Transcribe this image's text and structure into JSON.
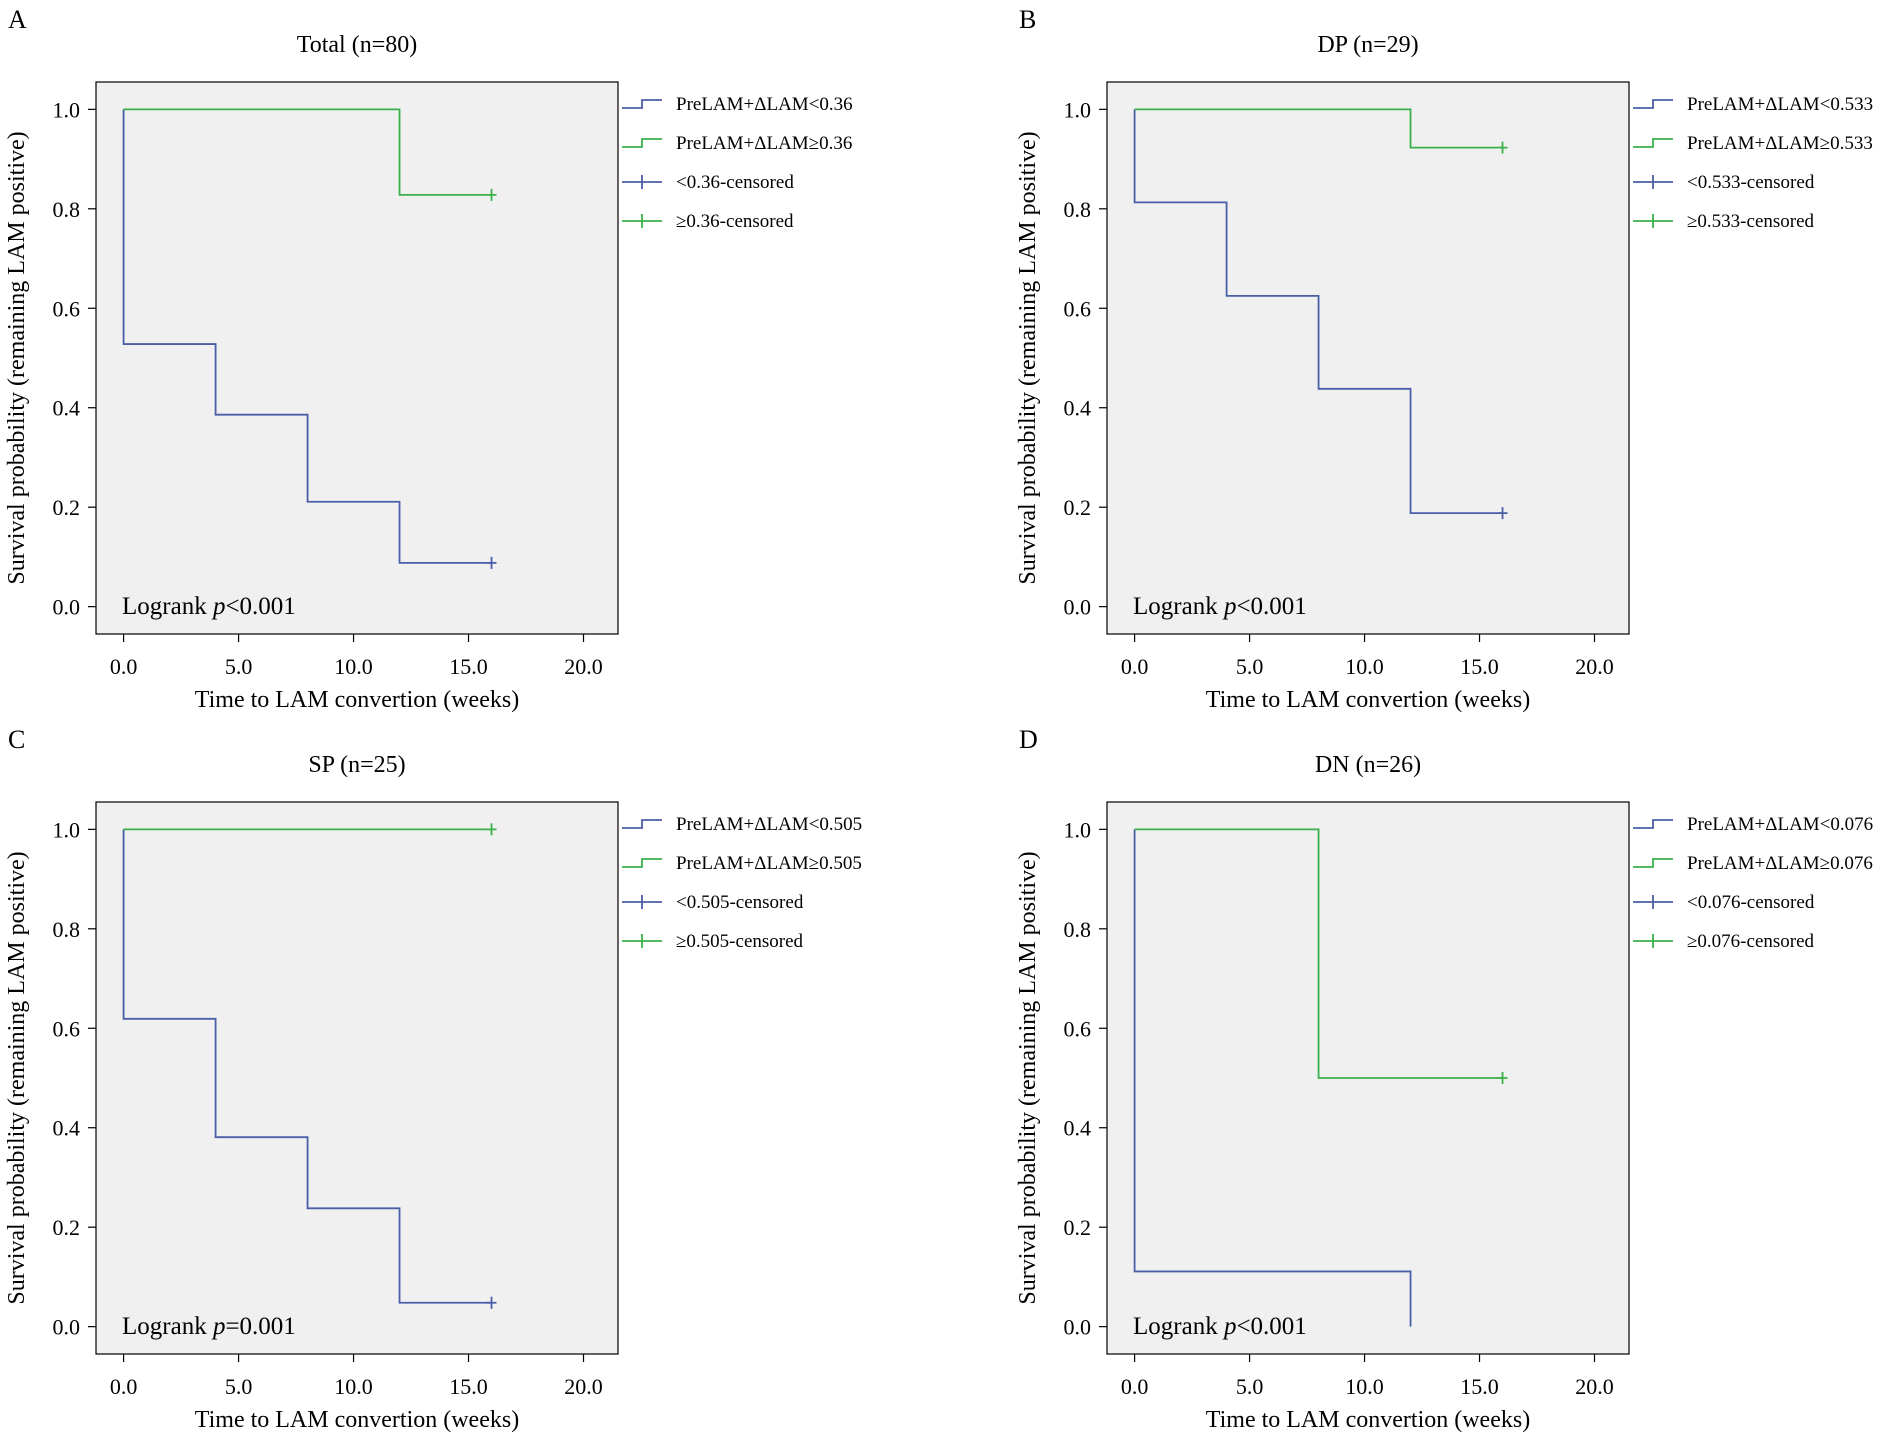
{
  "figure": {
    "description_free": true,
    "colors": {
      "group_low": "#4a5ea8",
      "group_high": "#3bb04a",
      "plot_background": "#f0f0f0",
      "axis": "#000000"
    }
  },
  "chart_data": [
    {
      "type": "line",
      "subtype": "kaplan-meier-step",
      "panel_letter": "A",
      "title": "Total (n=80)",
      "xlabel": "Time to LAM convertion (weeks)",
      "ylabel": "Survival probability (remaining LAM positive)",
      "xlim": [
        -1.2,
        21.5
      ],
      "ylim": [
        -0.055,
        1.055
      ],
      "x_ticks": [
        0,
        5,
        10,
        15,
        20
      ],
      "x_tick_labels": [
        "0.0",
        "5.0",
        "10.0",
        "15.0",
        "20.0"
      ],
      "y_ticks": [
        0,
        0.2,
        0.4,
        0.6,
        0.8,
        1.0
      ],
      "y_tick_labels": [
        "0.0",
        "0.2",
        "0.4",
        "0.6",
        "0.8",
        "1.0"
      ],
      "annotation": {
        "prefix": "Logrank ",
        "italic": "p",
        "suffix": "<0.001"
      },
      "legend": [
        "PreLAM+ΔLAM<0.36",
        "PreLAM+ΔLAM≥0.36",
        "<0.36-censored",
        "≥0.36-censored"
      ],
      "series": [
        {
          "name": "PreLAM+ΔLAM<0.36",
          "group": "low",
          "x": [
            0,
            0,
            4,
            4,
            8,
            8,
            12,
            12,
            16
          ],
          "y": [
            1.0,
            0.528,
            0.528,
            0.386,
            0.386,
            0.211,
            0.211,
            0.088,
            0.088
          ],
          "censored": [
            [
              16,
              0.088
            ]
          ]
        },
        {
          "name": "PreLAM+ΔLAM≥0.36",
          "group": "high",
          "x": [
            0,
            12,
            12,
            16
          ],
          "y": [
            1.0,
            1.0,
            0.828,
            0.828
          ],
          "censored": [
            [
              16,
              0.828
            ]
          ]
        }
      ]
    },
    {
      "type": "line",
      "subtype": "kaplan-meier-step",
      "panel_letter": "B",
      "title": "DP (n=29)",
      "xlabel": "Time to LAM convertion (weeks)",
      "ylabel": "Survival probability (remaining LAM positive)",
      "xlim": [
        -1.2,
        21.5
      ],
      "ylim": [
        -0.055,
        1.055
      ],
      "x_ticks": [
        0,
        5,
        10,
        15,
        20
      ],
      "x_tick_labels": [
        "0.0",
        "5.0",
        "10.0",
        "15.0",
        "20.0"
      ],
      "y_ticks": [
        0,
        0.2,
        0.4,
        0.6,
        0.8,
        1.0
      ],
      "y_tick_labels": [
        "0.0",
        "0.2",
        "0.4",
        "0.6",
        "0.8",
        "1.0"
      ],
      "annotation": {
        "prefix": "Logrank ",
        "italic": "p",
        "suffix": "<0.001"
      },
      "legend": [
        "PreLAM+ΔLAM<0.533",
        "PreLAM+ΔLAM≥0.533",
        "<0.533-censored",
        "≥0.533-censored"
      ],
      "series": [
        {
          "name": "PreLAM+ΔLAM<0.533",
          "group": "low",
          "x": [
            0,
            0,
            4,
            4,
            8,
            8,
            12,
            12,
            16
          ],
          "y": [
            1.0,
            0.813,
            0.813,
            0.625,
            0.625,
            0.438,
            0.438,
            0.188,
            0.188
          ],
          "censored": [
            [
              16,
              0.188
            ]
          ]
        },
        {
          "name": "PreLAM+ΔLAM≥0.533",
          "group": "high",
          "x": [
            0,
            12,
            12,
            16
          ],
          "y": [
            1.0,
            1.0,
            0.923,
            0.923
          ],
          "censored": [
            [
              16,
              0.923
            ]
          ]
        }
      ]
    },
    {
      "type": "line",
      "subtype": "kaplan-meier-step",
      "panel_letter": "C",
      "title": "SP (n=25)",
      "xlabel": "Time to LAM convertion (weeks)",
      "ylabel": "Survival probability (remaining LAM positive)",
      "xlim": [
        -1.2,
        21.5
      ],
      "ylim": [
        -0.055,
        1.055
      ],
      "x_ticks": [
        0,
        5,
        10,
        15,
        20
      ],
      "x_tick_labels": [
        "0.0",
        "5.0",
        "10.0",
        "15.0",
        "20.0"
      ],
      "y_ticks": [
        0,
        0.2,
        0.4,
        0.6,
        0.8,
        1.0
      ],
      "y_tick_labels": [
        "0.0",
        "0.2",
        "0.4",
        "0.6",
        "0.8",
        "1.0"
      ],
      "annotation": {
        "prefix": "Logrank ",
        "italic": "p",
        "suffix": "=0.001"
      },
      "legend": [
        "PreLAM+ΔLAM<0.505",
        "PreLAM+ΔLAM≥0.505",
        "<0.505-censored",
        "≥0.505-censored"
      ],
      "series": [
        {
          "name": "PreLAM+ΔLAM<0.505",
          "group": "low",
          "x": [
            0,
            0,
            4,
            4,
            8,
            8,
            12,
            12,
            16
          ],
          "y": [
            1.0,
            0.619,
            0.619,
            0.381,
            0.381,
            0.238,
            0.238,
            0.048,
            0.048
          ],
          "censored": [
            [
              16,
              0.048
            ]
          ]
        },
        {
          "name": "PreLAM+ΔLAM≥0.505",
          "group": "high",
          "x": [
            0,
            16
          ],
          "y": [
            1.0,
            1.0
          ],
          "censored": [
            [
              16,
              1.0
            ]
          ]
        }
      ]
    },
    {
      "type": "line",
      "subtype": "kaplan-meier-step",
      "panel_letter": "D",
      "title": "DN (n=26)",
      "xlabel": "Time to LAM convertion (weeks)",
      "ylabel": "Survival probability (remaining LAM positive)",
      "xlim": [
        -1.2,
        21.5
      ],
      "ylim": [
        -0.055,
        1.055
      ],
      "x_ticks": [
        0,
        5,
        10,
        15,
        20
      ],
      "x_tick_labels": [
        "0.0",
        "5.0",
        "10.0",
        "15.0",
        "20.0"
      ],
      "y_ticks": [
        0,
        0.2,
        0.4,
        0.6,
        0.8,
        1.0
      ],
      "y_tick_labels": [
        "0.0",
        "0.2",
        "0.4",
        "0.6",
        "0.8",
        "1.0"
      ],
      "annotation": {
        "prefix": "Logrank ",
        "italic": "p",
        "suffix": "<0.001"
      },
      "legend": [
        "PreLAM+ΔLAM<0.076",
        "PreLAM+ΔLAM≥0.076",
        "<0.076-censored",
        "≥0.076-censored"
      ],
      "series": [
        {
          "name": "PreLAM+ΔLAM<0.076",
          "group": "low",
          "x": [
            0,
            0,
            12,
            12
          ],
          "y": [
            1.0,
            0.111,
            0.111,
            0.0
          ],
          "censored": []
        },
        {
          "name": "PreLAM+ΔLAM≥0.076",
          "group": "high",
          "x": [
            0,
            8,
            8,
            16
          ],
          "y": [
            1.0,
            1.0,
            0.5,
            0.5
          ],
          "censored": [
            [
              16,
              0.5
            ]
          ]
        }
      ]
    }
  ]
}
